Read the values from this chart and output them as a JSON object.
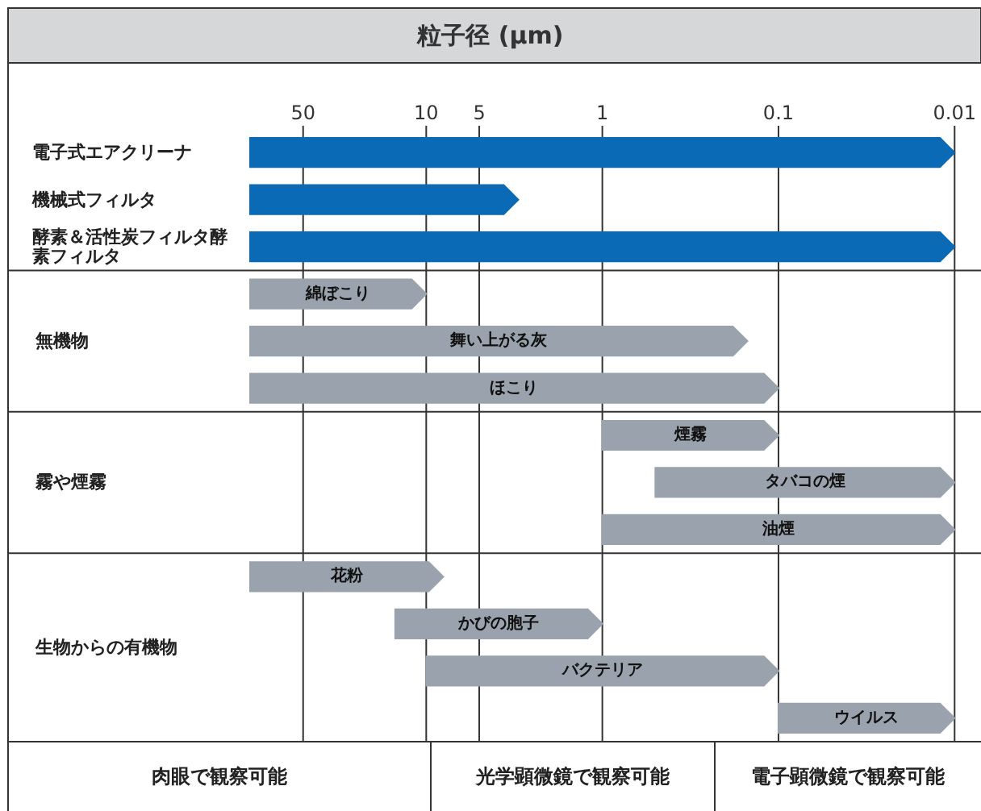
{
  "chart_data": {
    "type": "bar",
    "orientation": "horizontal",
    "title": "粒子径 (µm)",
    "categories": [
      "電子式エアクリーナ",
      "機械式フィルタ",
      "酵素＆活性炭フィルタ酵素フィルタ",
      "綿ぼこり",
      "舞い上がる灰",
      "ほこり",
      "煙霧",
      "タバコの煙",
      "油煙",
      "花粉",
      "かびの胞子",
      "バクテリア",
      "ウイルス"
    ],
    "base": [
      0.01,
      3,
      0.01,
      10,
      0.15,
      0.1,
      0.1,
      0.01,
      0.01,
      8,
      1,
      0.1,
      0.01
    ],
    "values": [
      99.99,
      97,
      99.99,
      90,
      99.85,
      99.9,
      0.9,
      0.49,
      0.99,
      92,
      14,
      9.9,
      0.09
    ],
    "colors": [
      "#0a6ab5",
      "#0a6ab5",
      "#0a6ab5",
      "#9aa3ad",
      "#9aa3ad",
      "#9aa3ad",
      "#9aa3ad",
      "#9aa3ad",
      "#9aa3ad",
      "#9aa3ad",
      "#9aa3ad",
      "#9aa3ad",
      "#9aa3ad"
    ],
    "log": "x",
    "xlim": [
      100,
      0.01
    ],
    "xticks": [
      50,
      10,
      5,
      1,
      0.1,
      0.01
    ],
    "grid": "x",
    "annotations": [
      "無機物",
      "霧や煙霧",
      "生物からの有機物",
      "肉眼で観察可能",
      "光学顕微鏡で観察可能",
      "電子顕微鏡で観察可能"
    ]
  }
}
